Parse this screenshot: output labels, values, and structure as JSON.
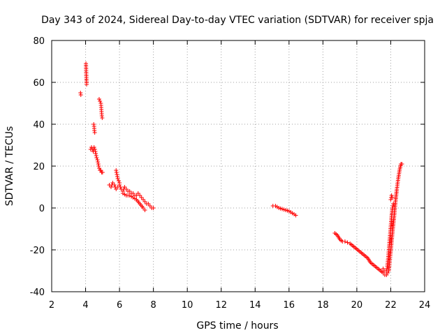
{
  "chart_data": {
    "type": "scatter",
    "title": "Day 343 of 2024, Sidereal Day-to-day VTEC variation (SDTVAR) for receiver spja",
    "xlabel": "GPS time / hours",
    "ylabel": "SDTVAR / TECUs",
    "xlim": [
      2,
      24
    ],
    "ylim": [
      -40,
      80
    ],
    "xticks": [
      2,
      4,
      6,
      8,
      10,
      12,
      14,
      16,
      18,
      20,
      22,
      24
    ],
    "yticks": [
      -40,
      -20,
      0,
      20,
      40,
      60,
      80
    ],
    "xtick_labels": [
      "2",
      "4",
      "6",
      "8",
      "10",
      "12",
      "14",
      "16",
      "18",
      "20",
      "22",
      "24"
    ],
    "ytick_labels": [
      "-40",
      "-20",
      "0",
      "20",
      "40",
      "60",
      "80"
    ],
    "grid": true,
    "marker": "+",
    "color": "#ff0000",
    "series": [
      {
        "name": "SDTVAR",
        "segments": [
          [
            [
              3.7,
              55
            ],
            [
              3.72,
              54
            ]
          ],
          [
            [
              4.02,
              69
            ],
            [
              4.04,
              64
            ],
            [
              4.06,
              59
            ]
          ],
          [
            [
              4.3,
              28
            ],
            [
              4.35,
              29
            ],
            [
              4.4,
              28
            ],
            [
              4.45,
              27
            ],
            [
              4.5,
              29
            ],
            [
              4.55,
              28
            ],
            [
              4.6,
              26
            ],
            [
              4.65,
              24
            ],
            [
              4.7,
              23
            ],
            [
              4.75,
              21
            ],
            [
              4.8,
              19
            ],
            [
              4.85,
              18
            ],
            [
              4.9,
              18
            ],
            [
              4.95,
              17
            ],
            [
              5.0,
              17
            ]
          ],
          [
            [
              4.48,
              40
            ],
            [
              4.5,
              39
            ],
            [
              4.52,
              37
            ],
            [
              4.54,
              36
            ]
          ],
          [
            [
              4.8,
              52
            ],
            [
              4.85,
              51
            ],
            [
              4.9,
              50
            ],
            [
              4.92,
              48
            ],
            [
              4.94,
              46
            ],
            [
              4.96,
              44
            ],
            [
              4.98,
              43
            ]
          ],
          [
            [
              5.4,
              11
            ],
            [
              5.5,
              10
            ],
            [
              5.6,
              12
            ],
            [
              5.7,
              11
            ],
            [
              5.8,
              9
            ],
            [
              5.9,
              10
            ],
            [
              6.0,
              11
            ],
            [
              6.1,
              9
            ],
            [
              6.2,
              8
            ],
            [
              6.3,
              10
            ],
            [
              6.4,
              9
            ],
            [
              6.5,
              8
            ],
            [
              6.6,
              8
            ],
            [
              6.7,
              7
            ],
            [
              6.8,
              7
            ],
            [
              6.9,
              6
            ],
            [
              7.0,
              6
            ],
            [
              7.1,
              7
            ],
            [
              7.2,
              6
            ],
            [
              7.3,
              5
            ],
            [
              7.4,
              4
            ],
            [
              7.5,
              3
            ],
            [
              7.6,
              2
            ],
            [
              7.7,
              2
            ],
            [
              7.8,
              1
            ],
            [
              7.9,
              0
            ],
            [
              8.0,
              0
            ]
          ],
          [
            [
              5.8,
              18
            ],
            [
              5.85,
              16
            ],
            [
              5.9,
              14
            ],
            [
              5.95,
              13
            ],
            [
              6.0,
              12
            ]
          ],
          [
            [
              6.2,
              7
            ],
            [
              6.4,
              6
            ],
            [
              6.6,
              6
            ],
            [
              6.8,
              5
            ],
            [
              7.0,
              4
            ],
            [
              7.2,
              2
            ],
            [
              7.4,
              0
            ],
            [
              7.5,
              -1
            ]
          ],
          [
            [
              15.05,
              1
            ],
            [
              15.2,
              1
            ],
            [
              15.4,
              0
            ],
            [
              15.6,
              -0.5
            ],
            [
              15.8,
              -1
            ],
            [
              16.0,
              -1.5
            ],
            [
              16.2,
              -2.5
            ],
            [
              16.4,
              -3.5
            ]
          ],
          [
            [
              18.7,
              -12
            ],
            [
              18.85,
              -13
            ],
            [
              19.0,
              -15
            ],
            [
              19.15,
              -16
            ],
            [
              19.3,
              -16
            ],
            [
              19.45,
              -16.5
            ],
            [
              19.6,
              -17
            ],
            [
              19.75,
              -18
            ],
            [
              19.9,
              -19
            ],
            [
              20.05,
              -20
            ],
            [
              20.2,
              -21
            ],
            [
              20.35,
              -22
            ],
            [
              20.5,
              -23
            ],
            [
              20.65,
              -24
            ],
            [
              20.8,
              -26
            ],
            [
              20.95,
              -27
            ],
            [
              21.1,
              -28
            ],
            [
              21.25,
              -29
            ],
            [
              21.4,
              -30
            ],
            [
              21.55,
              -31
            ],
            [
              21.65,
              -32
            ],
            [
              21.75,
              -32
            ],
            [
              21.82,
              -31
            ]
          ],
          [
            [
              21.55,
              -29
            ],
            [
              21.65,
              -30
            ],
            [
              21.75,
              -30
            ],
            [
              21.8,
              -28
            ],
            [
              21.85,
              -24
            ],
            [
              21.9,
              -19
            ],
            [
              21.95,
              -14
            ],
            [
              22.0,
              -9
            ],
            [
              22.05,
              -4
            ],
            [
              22.1,
              0
            ],
            [
              22.15,
              2
            ]
          ],
          [
            [
              21.88,
              -30
            ],
            [
              21.92,
              -27
            ],
            [
              21.98,
              -22
            ],
            [
              22.05,
              -16
            ],
            [
              22.12,
              -10
            ],
            [
              22.2,
              -4
            ],
            [
              22.28,
              3
            ],
            [
              22.36,
              9
            ],
            [
              22.44,
              14
            ],
            [
              22.52,
              18
            ],
            [
              22.6,
              21
            ],
            [
              22.66,
              21
            ]
          ],
          [
            [
              22.0,
              4
            ],
            [
              22.05,
              6
            ],
            [
              22.1,
              5
            ]
          ]
        ]
      }
    ]
  }
}
